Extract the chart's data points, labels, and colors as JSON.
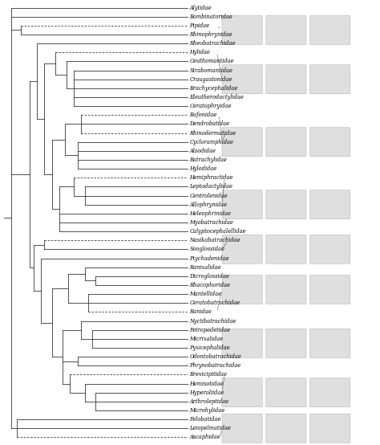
{
  "taxa": [
    "Alytidae",
    "Bombinatoridae",
    "Pipidae",
    "Rhinophrynidae",
    "Rheobatrachidae",
    "Hylidae",
    "Ceuthomantidae",
    "Strabomantidae",
    "Craugastonidae",
    "Brachycephalidae",
    "Eleutherodactylidae",
    "Ceratophryidae",
    "Bufonidae",
    "Dendrobatidae",
    "Rhinodermatidae",
    "Cycloramphidae",
    "Alsodidae",
    "Batrachylidae",
    "Hylodidae",
    "Hemiphractidae",
    "Leptodactylidae",
    "Centrolenidae",
    "Allophrynidae",
    "Heleophrinidae",
    "Myobatrachidae",
    "Calyptocephalellidae",
    "Nasikabatrachidae",
    "Sooglossidae",
    "Ptychadenidae",
    "Ranixalidae",
    "Dicroglossidae",
    "Rhacophoridae",
    "Mantellidae",
    "Ceratobatrachidae",
    "Ranidae",
    "Nyctibatrachidae",
    "Petropedetidae",
    "Micrixalidae",
    "Pyxicephalidae",
    "Odontobatrachidae",
    "Phrynobatrachidae",
    "Brevicipitidae",
    "Hemisotidae",
    "Hyperoliidae",
    "Arthroleptidae",
    "Microhylidae",
    "Pelobatidae",
    "Leiopelmatidae",
    "Ascaphidae"
  ],
  "dashed_taxa": [
    "Pipidae",
    "Hylidae",
    "Bufonidae",
    "Rhinodermatidae",
    "Hemiphractidae",
    "Nasikabatrachidae",
    "Ranidae",
    "Brevicipitidae",
    "Ascaphidae"
  ],
  "skull_rows": [
    {
      "taxa_center": [
        "Pipidae",
        "Rhinophrynidae"
      ],
      "mid_idx": 2.5
    },
    {
      "taxa_center": [
        "Hylidae",
        "Ceuthomantidae",
        "Strabomantidae",
        "Craugastonidae",
        "Brachycephalidae",
        "Eleutherodactylidae",
        "Ceratophryidae"
      ],
      "mid_idx": 8.5
    },
    {
      "taxa_center": [
        "Bufonidae",
        "Dendrobatidae",
        "Rhinodermatidae",
        "Cycloramphidae",
        "Alsodidae",
        "Batrachylidae",
        "Hylodidae"
      ],
      "mid_idx": 15.0
    },
    {
      "taxa_center": [
        "Hemiphractidae",
        "Leptodactylidae",
        "Centrolenidae",
        "Allophrynidae",
        "Heleophrinidae",
        "Myobatrachidae",
        "Calyptocephalellidae"
      ],
      "mid_idx": 21.5
    },
    {
      "taxa_center": [
        "Nasikabatrachidae",
        "Sooglossidae",
        "Ptychadenidae"
      ],
      "mid_idx": 27.0
    },
    {
      "taxa_center": [
        "Ranixalidae",
        "Dicroglossidae",
        "Rhacophoridae",
        "Mantellidae",
        "Ceratobatrachidae",
        "Ranidae"
      ],
      "mid_idx": 31.5
    },
    {
      "taxa_center": [
        "Nyctibatrachidae",
        "Petropedetidae",
        "Micrixalidae",
        "Pyxicephalidae",
        "Odontobatrachidae",
        "Phrynobatrachidae"
      ],
      "mid_idx": 37.5
    },
    {
      "taxa_center": [
        "Brevicipitidae",
        "Hemisotidae",
        "Hyperoliidae",
        "Arthroleptidae",
        "Microhylidae"
      ],
      "mid_idx": 43.5
    },
    {
      "taxa_center": [
        "Pelobatidae",
        "Leiopelmatidae",
        "Ascaphidae"
      ],
      "mid_idx": 47.0
    }
  ],
  "bg_color": "#ffffff",
  "line_color": "#333333",
  "label_color": "#000000",
  "label_fontsize": 4.8,
  "fig_width": 4.74,
  "fig_height": 5.54
}
